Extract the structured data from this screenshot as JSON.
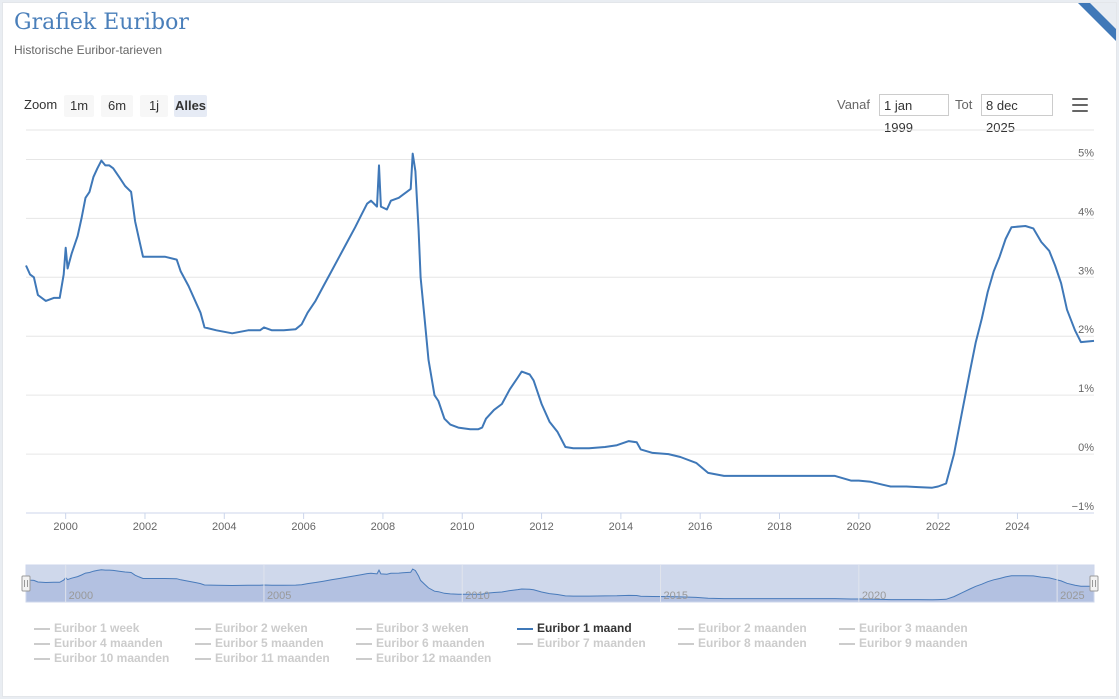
{
  "header": {
    "title": "Grafiek Euribor",
    "subtitle": "Historische Euribor-tarieven"
  },
  "zoom": {
    "label": "Zoom",
    "buttons": [
      "1m",
      "6m",
      "1j",
      "Alles"
    ],
    "active": "Alles"
  },
  "range": {
    "from_label": "Vanaf",
    "from_value": "1 jan 1999",
    "to_label": "Tot",
    "to_value": "8 dec 2025"
  },
  "icons": {
    "menu": "hamburger-menu-icon",
    "handle": "grip-handle-icon"
  },
  "colors": {
    "series": "#3f78b8",
    "navigator_fill": "#ccd6eb",
    "title": "#4a7fba"
  },
  "chart_data": {
    "type": "line",
    "x_unit": "year",
    "xlim": [
      1999.0,
      2025.93
    ],
    "ylim": [
      -1,
      5.5
    ],
    "x_ticks": [
      "2000",
      "2002",
      "2004",
      "2006",
      "2008",
      "2010",
      "2012",
      "2014",
      "2016",
      "2018",
      "2020",
      "2022",
      "2024"
    ],
    "y_ticks": [
      "5%",
      "4%",
      "3%",
      "2%",
      "1%",
      "0%",
      "−1%"
    ],
    "y_tick_values": [
      5,
      4,
      3,
      2,
      1,
      0,
      -1
    ],
    "navigator_ticks": [
      "2000",
      "2005",
      "2010",
      "2015",
      "2020",
      "2025"
    ],
    "grid": true,
    "series": [
      {
        "name": "Euribor 1 maand",
        "points": [
          [
            1999.0,
            3.2
          ],
          [
            1999.1,
            3.05
          ],
          [
            1999.2,
            3.0
          ],
          [
            1999.3,
            2.7
          ],
          [
            1999.5,
            2.6
          ],
          [
            1999.7,
            2.65
          ],
          [
            1999.85,
            2.65
          ],
          [
            1999.95,
            3.05
          ],
          [
            2000.0,
            3.5
          ],
          [
            2000.05,
            3.15
          ],
          [
            2000.15,
            3.4
          ],
          [
            2000.3,
            3.7
          ],
          [
            2000.4,
            4.0
          ],
          [
            2000.5,
            4.35
          ],
          [
            2000.6,
            4.45
          ],
          [
            2000.7,
            4.7
          ],
          [
            2000.8,
            4.85
          ],
          [
            2000.9,
            4.98
          ],
          [
            2001.0,
            4.9
          ],
          [
            2001.1,
            4.9
          ],
          [
            2001.2,
            4.85
          ],
          [
            2001.35,
            4.7
          ],
          [
            2001.5,
            4.55
          ],
          [
            2001.65,
            4.45
          ],
          [
            2001.75,
            3.95
          ],
          [
            2001.85,
            3.65
          ],
          [
            2001.95,
            3.35
          ],
          [
            2002.2,
            3.35
          ],
          [
            2002.5,
            3.35
          ],
          [
            2002.8,
            3.3
          ],
          [
            2002.9,
            3.1
          ],
          [
            2003.1,
            2.85
          ],
          [
            2003.3,
            2.55
          ],
          [
            2003.4,
            2.4
          ],
          [
            2003.5,
            2.15
          ],
          [
            2003.8,
            2.1
          ],
          [
            2004.2,
            2.05
          ],
          [
            2004.6,
            2.1
          ],
          [
            2004.9,
            2.1
          ],
          [
            2005.0,
            2.15
          ],
          [
            2005.2,
            2.1
          ],
          [
            2005.5,
            2.1
          ],
          [
            2005.8,
            2.12
          ],
          [
            2005.95,
            2.2
          ],
          [
            2006.1,
            2.4
          ],
          [
            2006.3,
            2.6
          ],
          [
            2006.5,
            2.85
          ],
          [
            2006.7,
            3.1
          ],
          [
            2006.9,
            3.35
          ],
          [
            2007.1,
            3.6
          ],
          [
            2007.3,
            3.85
          ],
          [
            2007.45,
            4.05
          ],
          [
            2007.6,
            4.25
          ],
          [
            2007.7,
            4.3
          ],
          [
            2007.85,
            4.2
          ],
          [
            2007.9,
            4.9
          ],
          [
            2007.95,
            4.2
          ],
          [
            2008.1,
            4.15
          ],
          [
            2008.2,
            4.3
          ],
          [
            2008.4,
            4.35
          ],
          [
            2008.5,
            4.4
          ],
          [
            2008.6,
            4.45
          ],
          [
            2008.7,
            4.5
          ],
          [
            2008.75,
            5.1
          ],
          [
            2008.82,
            4.8
          ],
          [
            2008.9,
            3.8
          ],
          [
            2008.95,
            3.0
          ],
          [
            2009.05,
            2.3
          ],
          [
            2009.15,
            1.6
          ],
          [
            2009.3,
            1.0
          ],
          [
            2009.4,
            0.9
          ],
          [
            2009.55,
            0.6
          ],
          [
            2009.7,
            0.5
          ],
          [
            2009.9,
            0.45
          ],
          [
            2010.2,
            0.42
          ],
          [
            2010.4,
            0.42
          ],
          [
            2010.5,
            0.45
          ],
          [
            2010.6,
            0.6
          ],
          [
            2010.8,
            0.75
          ],
          [
            2011.0,
            0.85
          ],
          [
            2011.2,
            1.1
          ],
          [
            2011.4,
            1.3
          ],
          [
            2011.5,
            1.4
          ],
          [
            2011.7,
            1.35
          ],
          [
            2011.8,
            1.25
          ],
          [
            2011.9,
            1.05
          ],
          [
            2012.0,
            0.85
          ],
          [
            2012.2,
            0.55
          ],
          [
            2012.4,
            0.38
          ],
          [
            2012.6,
            0.12
          ],
          [
            2012.8,
            0.1
          ],
          [
            2013.2,
            0.1
          ],
          [
            2013.6,
            0.12
          ],
          [
            2013.9,
            0.15
          ],
          [
            2014.2,
            0.22
          ],
          [
            2014.4,
            0.2
          ],
          [
            2014.5,
            0.08
          ],
          [
            2014.8,
            0.02
          ],
          [
            2015.2,
            0.0
          ],
          [
            2015.5,
            -0.05
          ],
          [
            2015.9,
            -0.15
          ],
          [
            2016.2,
            -0.32
          ],
          [
            2016.6,
            -0.37
          ],
          [
            2017.5,
            -0.37
          ],
          [
            2018.5,
            -0.37
          ],
          [
            2019.4,
            -0.37
          ],
          [
            2019.8,
            -0.45
          ],
          [
            2020.0,
            -0.45
          ],
          [
            2020.3,
            -0.47
          ],
          [
            2020.6,
            -0.52
          ],
          [
            2020.8,
            -0.55
          ],
          [
            2021.2,
            -0.55
          ],
          [
            2021.5,
            -0.56
          ],
          [
            2021.85,
            -0.57
          ],
          [
            2022.0,
            -0.55
          ],
          [
            2022.2,
            -0.5
          ],
          [
            2022.4,
            0.0
          ],
          [
            2022.6,
            0.7
          ],
          [
            2022.8,
            1.4
          ],
          [
            2022.95,
            1.9
          ],
          [
            2023.1,
            2.3
          ],
          [
            2023.25,
            2.75
          ],
          [
            2023.4,
            3.1
          ],
          [
            2023.55,
            3.35
          ],
          [
            2023.7,
            3.65
          ],
          [
            2023.85,
            3.85
          ],
          [
            2024.2,
            3.87
          ],
          [
            2024.4,
            3.83
          ],
          [
            2024.6,
            3.6
          ],
          [
            2024.8,
            3.45
          ],
          [
            2024.95,
            3.2
          ],
          [
            2025.1,
            2.9
          ],
          [
            2025.25,
            2.45
          ],
          [
            2025.45,
            2.1
          ],
          [
            2025.6,
            1.9
          ],
          [
            2025.93,
            1.92
          ]
        ]
      }
    ],
    "legend": [
      {
        "name": "Euribor 1 week",
        "active": false
      },
      {
        "name": "Euribor 2 weken",
        "active": false
      },
      {
        "name": "Euribor 3 weken",
        "active": false
      },
      {
        "name": "Euribor 1 maand",
        "active": true
      },
      {
        "name": "Euribor 2 maanden",
        "active": false
      },
      {
        "name": "Euribor 3 maanden",
        "active": false
      },
      {
        "name": "Euribor 4 maanden",
        "active": false
      },
      {
        "name": "Euribor 5 maanden",
        "active": false
      },
      {
        "name": "Euribor 6 maanden",
        "active": false
      },
      {
        "name": "Euribor 7 maanden",
        "active": false
      },
      {
        "name": "Euribor 8 maanden",
        "active": false
      },
      {
        "name": "Euribor 9 maanden",
        "active": false
      },
      {
        "name": "Euribor 10 maanden",
        "active": false
      },
      {
        "name": "Euribor 11 maanden",
        "active": false
      },
      {
        "name": "Euribor 12 maanden",
        "active": false
      }
    ],
    "legend_placement": "bottom"
  }
}
